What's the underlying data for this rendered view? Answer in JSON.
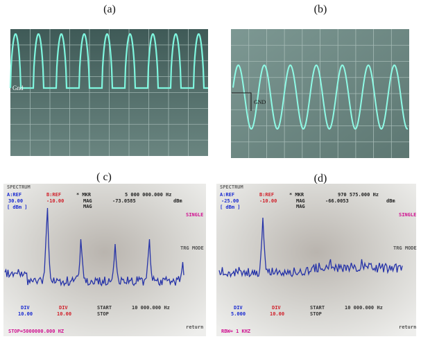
{
  "panels": [
    {
      "label": "(a)",
      "ground": "Gnd"
    },
    {
      "label": "(b)",
      "ground": "GND"
    },
    {
      "label": "( c)",
      "screen_text": [
        "SPECTRUM",
        "A:REF",
        "30.00",
        "[ dBm ]",
        "B:REF",
        "-10.00",
        "* MKR",
        "MAG",
        "MAG",
        "5 000 000.000 Hz",
        "-73.0585",
        "dBm",
        "SINGLE",
        "TRG MODE",
        "DIV",
        "10.00",
        "DIV",
        "10.00",
        "START",
        "STOP",
        "10 000.000 Hz",
        "STOP=5000000.000 HZ",
        "return"
      ]
    },
    {
      "label": "(d)",
      "screen_text": [
        "SPECTRUM",
        "A:REF",
        "-25.00",
        "[ dBm ]",
        "B:REF",
        "-10.00",
        "* MKR",
        "MAG",
        "MAG",
        "970 575.000 Hz",
        "-66.0053",
        "dBm",
        "SINGLE",
        "TRG MODE",
        "DIV",
        "5.000",
        "DIV",
        "10.00",
        "START",
        "STOP",
        "10 000.000 Hz",
        "RBW= 1 KHZ",
        "return"
      ]
    }
  ]
}
